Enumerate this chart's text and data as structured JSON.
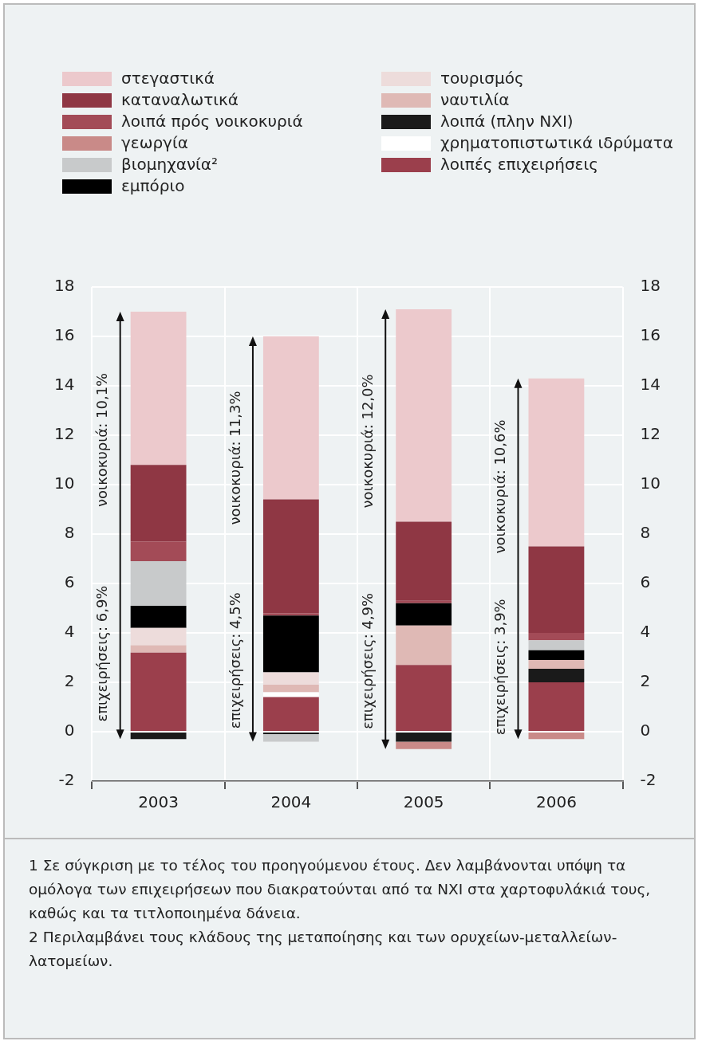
{
  "chart_data": {
    "type": "bar",
    "stacked": true,
    "categories": [
      "2003",
      "2004",
      "2005",
      "2006"
    ],
    "series": [
      {
        "name": "λοιπές επιχειρήσεις",
        "color": "#9b3f4c",
        "values": [
          3.2,
          1.4,
          2.7,
          2.0
        ]
      },
      {
        "name": "χρηματοπιστωτικά ιδρύματα",
        "color": "#ffffff",
        "values": [
          null,
          0.2,
          null,
          null
        ]
      },
      {
        "name": "λοιπά (πλην ΝΧΙ)",
        "color": "#1a1a1a",
        "values": [
          -0.3,
          -0.1,
          -0.4,
          0.55
        ]
      },
      {
        "name": "ναυτιλία",
        "color": "#dfb9b5",
        "values": [
          0.3,
          0.3,
          1.6,
          0.35
        ]
      },
      {
        "name": "τουρισμός",
        "color": "#eddcdb",
        "values": [
          0.7,
          0.5,
          null,
          null
        ]
      },
      {
        "name": "εμπόριο",
        "color": "#000000",
        "values": [
          0.9,
          2.3,
          0.9,
          0.4
        ]
      },
      {
        "name": "βιομηχανία²",
        "color": "#c8cacb",
        "values": [
          1.8,
          -0.3,
          null,
          0.4
        ]
      },
      {
        "name": "γεωργία",
        "color": "#c98a88",
        "values": [
          null,
          null,
          -0.3,
          -0.3
        ]
      },
      {
        "name": "λοιπά πρός νοικοκυριά",
        "color": "#a34b57",
        "values": [
          0.8,
          0.1,
          0.1,
          0.3
        ]
      },
      {
        "name": "καταναλωτικά",
        "color": "#8f3744",
        "values": [
          3.1,
          4.6,
          3.2,
          3.5
        ]
      },
      {
        "name": "στεγαστικά",
        "color": "#ecc9cc",
        "values": [
          6.2,
          6.6,
          8.6,
          6.8
        ]
      }
    ],
    "ylim": [
      -2,
      18
    ],
    "yticks": [
      -2,
      0,
      2,
      4,
      6,
      8,
      10,
      12,
      14,
      16,
      18
    ],
    "y2lim": [
      -2,
      18
    ],
    "y2ticks": [
      -2,
      0,
      2,
      4,
      6,
      8,
      10,
      12,
      14,
      16,
      18
    ],
    "grid": true,
    "legend": "top",
    "annotations": [
      "νοικοκυριά: 10,1%",
      "επιχειρήσεις: 6,9%",
      "νοικοκυριά: 11,3%",
      "επιχειρήσεις: 4,5%",
      "νοικοκυριά: 12,0%",
      "επιχειρήσεις: 4,9%",
      "νοικοκυριά: 10,6%",
      "επιχειρήσεις: 3,9%",
      "1 Σε σύγκριση με το τέλος του προηγούμενου έτους. Δεν λαμβάνονται υπόψη τα ομόλογα των επιχειρήσεων που διακρατούνται από τα ΝΧΙ στα χαρτοφυλάκιά τους, καθώς και τα τιτλοποιημένα δάνεια.",
      "2 Περιλαμβάνει τους κλάδους της μεταποίησης και των ορυχείων-μεταλλείων-λατομείων."
    ]
  }
}
